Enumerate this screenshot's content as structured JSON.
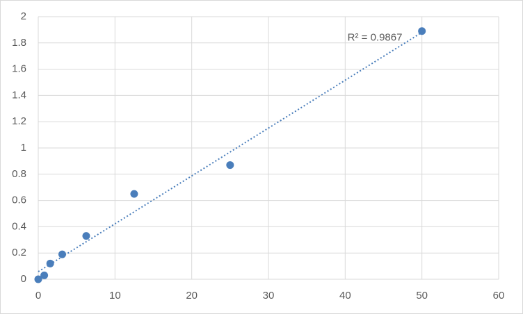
{
  "chart_data": {
    "type": "scatter",
    "x": [
      0,
      0.78,
      1.56,
      3.125,
      6.25,
      12.5,
      25,
      50
    ],
    "series": [
      {
        "color": "#4a7ebb",
        "values": [
          0,
          0.03,
          0.12,
          0.19,
          0.33,
          0.65,
          0.87,
          1.89
        ]
      }
    ],
    "xlim": [
      0,
      60
    ],
    "xticks": [
      0,
      10,
      20,
      30,
      40,
      50,
      60
    ],
    "ylim": [
      0,
      2
    ],
    "yticks": [
      0,
      0.2,
      0.4,
      0.6,
      0.8,
      1,
      1.2,
      1.4,
      1.6,
      1.8,
      2
    ],
    "grid": true,
    "trendline": "linear",
    "annotation": "R² = 0.9867"
  }
}
